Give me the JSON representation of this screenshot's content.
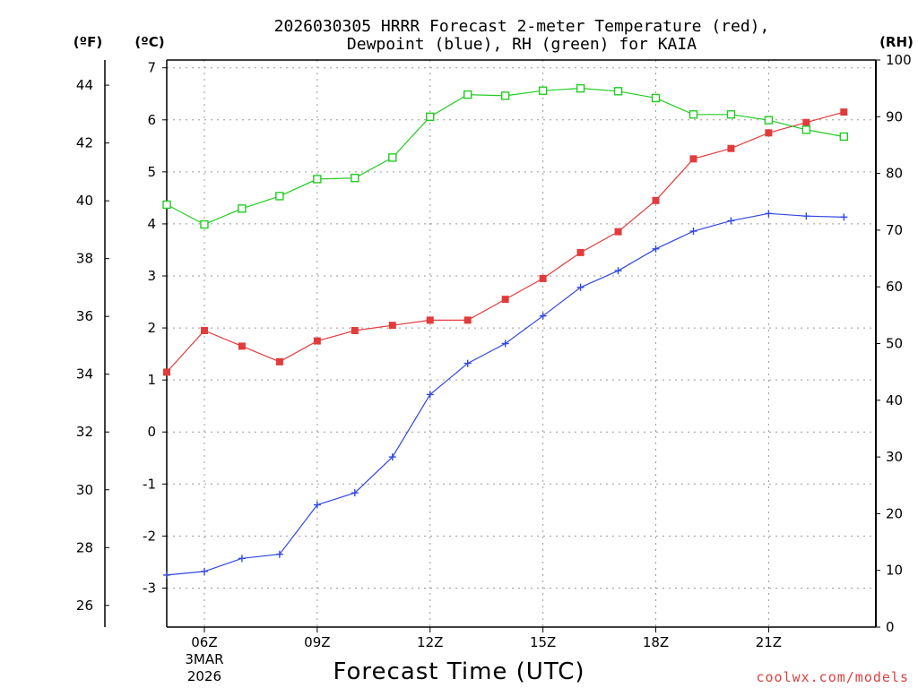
{
  "title_line1": "2026030305 HRRR Forecast 2-meter Temperature (red),",
  "title_line2": "Dewpoint (blue), RH (green) for KAIA",
  "credit": "coolwx.com/models",
  "colors": {
    "temperature": "#e23b3b",
    "dewpoint": "#3048e0",
    "rh": "#22cc22",
    "grid": "#999999"
  },
  "chart_data": {
    "type": "line",
    "title": "2026030305 HRRR Forecast 2-meter Temperature (red), Dewpoint (blue), RH (green) for KAIA",
    "xlabel": "Forecast Time (UTC)",
    "ylabel_f": "(ºF)",
    "ylabel_c": "(ºC)",
    "ylabel_rh": "(RH)",
    "grid": true,
    "x_hours": [
      5,
      6,
      7,
      8,
      9,
      10,
      11,
      12,
      13,
      14,
      15,
      16,
      17,
      18,
      19,
      20,
      21,
      22,
      23
    ],
    "x_ticks": [
      {
        "hour": 6,
        "label": "06Z",
        "sub1": "3MAR",
        "sub2": "2026"
      },
      {
        "hour": 9,
        "label": "09Z"
      },
      {
        "hour": 12,
        "label": "12Z"
      },
      {
        "hour": 15,
        "label": "15Z"
      },
      {
        "hour": 18,
        "label": "18Z"
      },
      {
        "hour": 21,
        "label": "21Z"
      }
    ],
    "xlim": [
      5,
      23.85
    ],
    "celsius_range": [
      -3.75,
      7.15
    ],
    "celsius_ticks": [
      "-3",
      "-2",
      "-1",
      "0",
      "1",
      "2",
      "3",
      "4",
      "5",
      "6",
      "7"
    ],
    "fahrenheit_ticks": [
      "26",
      "28",
      "30",
      "32",
      "34",
      "36",
      "38",
      "40",
      "42",
      "44"
    ],
    "rh_range": [
      0,
      100
    ],
    "rh_ticks": [
      "0",
      "10",
      "20",
      "30",
      "40",
      "50",
      "60",
      "70",
      "80",
      "90",
      "100"
    ],
    "series": [
      {
        "name": "Temperature (°C)",
        "color": "#e23b3b",
        "marker": "square-filled",
        "values": [
          1.15,
          1.95,
          1.65,
          1.35,
          1.75,
          1.95,
          2.05,
          2.15,
          2.15,
          2.55,
          2.95,
          3.45,
          3.85,
          4.45,
          5.25,
          5.45,
          5.75,
          5.95,
          6.15
        ]
      },
      {
        "name": "Dewpoint (°C)",
        "color": "#3048e0",
        "marker": "plus",
        "values": [
          -2.75,
          -2.68,
          -2.43,
          -2.35,
          -1.4,
          -1.17,
          -0.48,
          0.72,
          1.32,
          1.7,
          2.23,
          2.78,
          3.1,
          3.52,
          3.86,
          4.06,
          4.2,
          4.15,
          4.13
        ]
      },
      {
        "name": "RH (%)",
        "color": "#22cc22",
        "marker": "square-open",
        "values": [
          74.5,
          71,
          73.8,
          76,
          79,
          79.2,
          82.8,
          90,
          93.9,
          93.7,
          94.6,
          95,
          94.5,
          93.3,
          90.4,
          90.4,
          89.4,
          87.7,
          86.5
        ]
      }
    ]
  }
}
